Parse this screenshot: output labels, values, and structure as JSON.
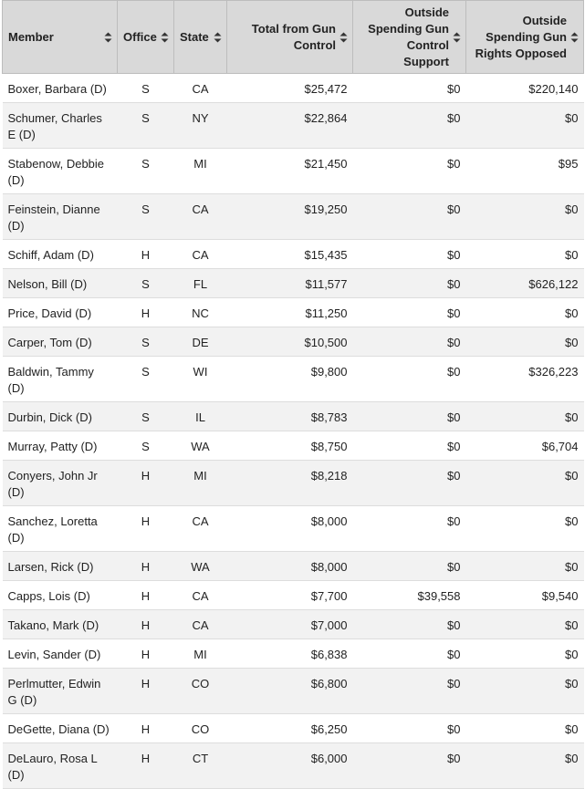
{
  "columns": [
    {
      "key": "member",
      "label": "Member"
    },
    {
      "key": "office",
      "label": "Office"
    },
    {
      "key": "state",
      "label": "State"
    },
    {
      "key": "total",
      "label": "Total from Gun Control"
    },
    {
      "key": "support",
      "label": "Outside Spending Gun Control Support"
    },
    {
      "key": "opposed",
      "label": "Outside Spending Gun Rights Opposed"
    }
  ],
  "icons": {
    "sort": "sort-up-down-icon"
  },
  "rows": [
    {
      "member": "Boxer, Barbara (D)",
      "office": "S",
      "state": "CA",
      "total": "$25,472",
      "support": "$0",
      "opposed": "$220,140"
    },
    {
      "member": "Schumer, Charles E (D)",
      "office": "S",
      "state": "NY",
      "total": "$22,864",
      "support": "$0",
      "opposed": "$0"
    },
    {
      "member": "Stabenow, Debbie (D)",
      "office": "S",
      "state": "MI",
      "total": "$21,450",
      "support": "$0",
      "opposed": "$95"
    },
    {
      "member": "Feinstein, Dianne (D)",
      "office": "S",
      "state": "CA",
      "total": "$19,250",
      "support": "$0",
      "opposed": "$0"
    },
    {
      "member": "Schiff, Adam (D)",
      "office": "H",
      "state": "CA",
      "total": "$15,435",
      "support": "$0",
      "opposed": "$0"
    },
    {
      "member": "Nelson, Bill (D)",
      "office": "S",
      "state": "FL",
      "total": "$11,577",
      "support": "$0",
      "opposed": "$626,122"
    },
    {
      "member": "Price, David (D)",
      "office": "H",
      "state": "NC",
      "total": "$11,250",
      "support": "$0",
      "opposed": "$0"
    },
    {
      "member": "Carper, Tom (D)",
      "office": "S",
      "state": "DE",
      "total": "$10,500",
      "support": "$0",
      "opposed": "$0"
    },
    {
      "member": "Baldwin, Tammy (D)",
      "office": "S",
      "state": "WI",
      "total": "$9,800",
      "support": "$0",
      "opposed": "$326,223"
    },
    {
      "member": "Durbin, Dick (D)",
      "office": "S",
      "state": "IL",
      "total": "$8,783",
      "support": "$0",
      "opposed": "$0"
    },
    {
      "member": "Murray, Patty (D)",
      "office": "S",
      "state": "WA",
      "total": "$8,750",
      "support": "$0",
      "opposed": "$6,704"
    },
    {
      "member": "Conyers, John Jr (D)",
      "office": "H",
      "state": "MI",
      "total": "$8,218",
      "support": "$0",
      "opposed": "$0"
    },
    {
      "member": "Sanchez, Loretta (D)",
      "office": "H",
      "state": "CA",
      "total": "$8,000",
      "support": "$0",
      "opposed": "$0"
    },
    {
      "member": "Larsen, Rick (D)",
      "office": "H",
      "state": "WA",
      "total": "$8,000",
      "support": "$0",
      "opposed": "$0"
    },
    {
      "member": "Capps, Lois (D)",
      "office": "H",
      "state": "CA",
      "total": "$7,700",
      "support": "$39,558",
      "opposed": "$9,540"
    },
    {
      "member": "Takano, Mark (D)",
      "office": "H",
      "state": "CA",
      "total": "$7,000",
      "support": "$0",
      "opposed": "$0"
    },
    {
      "member": "Levin, Sander (D)",
      "office": "H",
      "state": "MI",
      "total": "$6,838",
      "support": "$0",
      "opposed": "$0"
    },
    {
      "member": "Perlmutter, Edwin G (D)",
      "office": "H",
      "state": "CO",
      "total": "$6,800",
      "support": "$0",
      "opposed": "$0"
    },
    {
      "member": "DeGette, Diana (D)",
      "office": "H",
      "state": "CO",
      "total": "$6,250",
      "support": "$0",
      "opposed": "$0"
    },
    {
      "member": "DeLauro, Rosa L (D)",
      "office": "H",
      "state": "CT",
      "total": "$6,000",
      "support": "$0",
      "opposed": "$0"
    }
  ]
}
